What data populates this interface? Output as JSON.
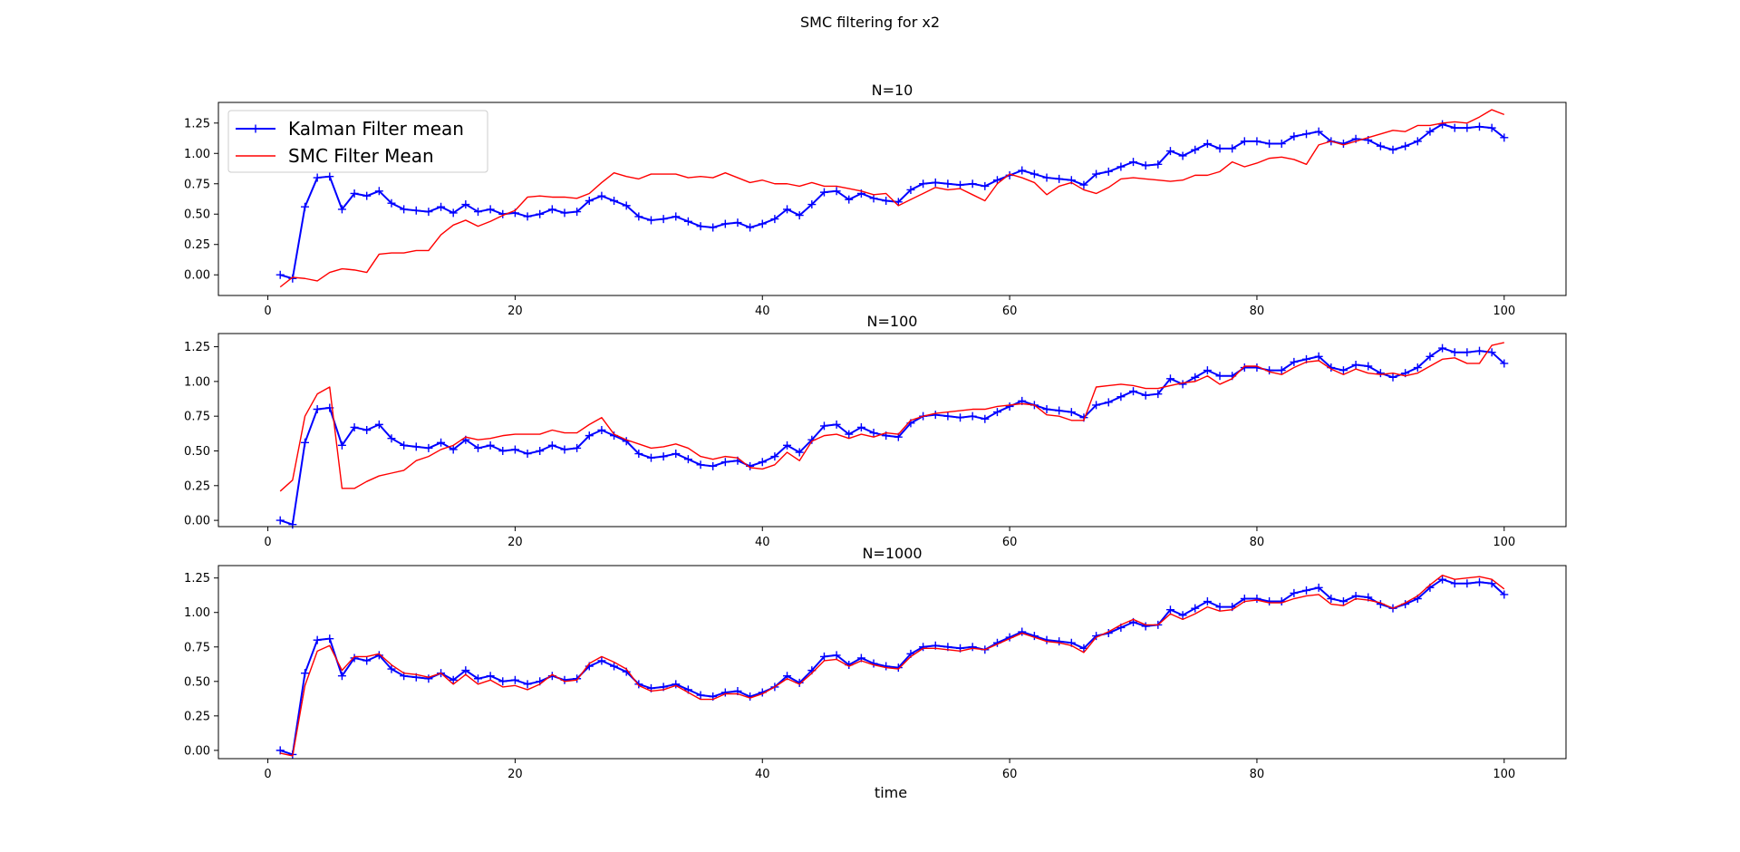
{
  "figure": {
    "suptitle": "SMC filtering for x2",
    "xlabel": "time"
  },
  "legend": {
    "location": "upper-left",
    "entries": [
      "Kalman Filter mean",
      "SMC Filter Mean"
    ]
  },
  "colors": {
    "kalman": "#0000ff",
    "smc": "#ff0000",
    "axes": "#000000"
  },
  "chart_data": [
    {
      "type": "line",
      "title": "N=10",
      "xlim": [
        -4,
        105
      ],
      "ylim": [
        -0.17,
        1.42
      ],
      "xticks": [
        0,
        20,
        40,
        60,
        80,
        100
      ],
      "yticks": [
        0.0,
        0.25,
        0.5,
        0.75,
        1.0,
        1.25
      ],
      "ytick_labels": [
        "0.00",
        "0.25",
        "0.50",
        "0.75",
        "1.00",
        "1.25"
      ],
      "x": [
        1,
        2,
        3,
        4,
        5,
        6,
        7,
        8,
        9,
        10,
        11,
        12,
        13,
        14,
        15,
        16,
        17,
        18,
        19,
        20,
        21,
        22,
        23,
        24,
        25,
        26,
        27,
        28,
        29,
        30,
        31,
        32,
        33,
        34,
        35,
        36,
        37,
        38,
        39,
        40,
        41,
        42,
        43,
        44,
        45,
        46,
        47,
        48,
        49,
        50,
        51,
        52,
        53,
        54,
        55,
        56,
        57,
        58,
        59,
        60,
        61,
        62,
        63,
        64,
        65,
        66,
        67,
        68,
        69,
        70,
        71,
        72,
        73,
        74,
        75,
        76,
        77,
        78,
        79,
        80,
        81,
        82,
        83,
        84,
        85,
        86,
        87,
        88,
        89,
        90,
        91,
        92,
        93,
        94,
        95,
        96,
        97,
        98,
        99,
        100
      ],
      "series": [
        {
          "name": "Kalman Filter mean",
          "color": "#0000ff",
          "marker": "+",
          "values": [
            0.0,
            -0.03,
            0.56,
            0.8,
            0.81,
            0.54,
            0.67,
            0.65,
            0.69,
            0.59,
            0.54,
            0.53,
            0.52,
            0.56,
            0.51,
            0.58,
            0.52,
            0.54,
            0.5,
            0.51,
            0.48,
            0.5,
            0.54,
            0.51,
            0.52,
            0.61,
            0.65,
            0.61,
            0.57,
            0.48,
            0.45,
            0.46,
            0.48,
            0.44,
            0.4,
            0.39,
            0.42,
            0.43,
            0.39,
            0.42,
            0.46,
            0.54,
            0.49,
            0.58,
            0.68,
            0.69,
            0.62,
            0.67,
            0.63,
            0.61,
            0.6,
            0.7,
            0.75,
            0.76,
            0.75,
            0.74,
            0.75,
            0.73,
            0.78,
            0.82,
            0.86,
            0.83,
            0.8,
            0.79,
            0.78,
            0.74,
            0.83,
            0.85,
            0.89,
            0.93,
            0.9,
            0.91,
            1.02,
            0.98,
            1.03,
            1.08,
            1.04,
            1.04,
            1.1,
            1.1,
            1.08,
            1.08,
            1.14,
            1.16,
            1.18,
            1.1,
            1.08,
            1.12,
            1.11,
            1.06,
            1.03,
            1.06,
            1.1,
            1.18,
            1.24,
            1.21,
            1.21,
            1.22,
            1.21,
            1.13
          ]
        },
        {
          "name": "SMC Filter Mean",
          "color": "#ff0000",
          "marker": "",
          "values": [
            -0.1,
            -0.02,
            -0.03,
            -0.05,
            0.02,
            0.05,
            0.04,
            0.02,
            0.17,
            0.18,
            0.18,
            0.2,
            0.2,
            0.33,
            0.41,
            0.45,
            0.4,
            0.44,
            0.49,
            0.53,
            0.64,
            0.65,
            0.64,
            0.64,
            0.63,
            0.67,
            0.76,
            0.84,
            0.81,
            0.79,
            0.83,
            0.83,
            0.83,
            0.8,
            0.81,
            0.8,
            0.84,
            0.8,
            0.76,
            0.78,
            0.75,
            0.75,
            0.73,
            0.76,
            0.73,
            0.73,
            0.71,
            0.69,
            0.66,
            0.67,
            0.57,
            0.62,
            0.67,
            0.72,
            0.7,
            0.71,
            0.66,
            0.61,
            0.75,
            0.83,
            0.8,
            0.76,
            0.66,
            0.73,
            0.76,
            0.7,
            0.67,
            0.72,
            0.79,
            0.8,
            0.79,
            0.78,
            0.77,
            0.78,
            0.82,
            0.82,
            0.85,
            0.93,
            0.89,
            0.92,
            0.96,
            0.97,
            0.95,
            0.91,
            1.07,
            1.1,
            1.07,
            1.1,
            1.13,
            1.16,
            1.19,
            1.18,
            1.23,
            1.23,
            1.25,
            1.26,
            1.25,
            1.3,
            1.36,
            1.32
          ]
        }
      ]
    },
    {
      "type": "line",
      "title": "N=100",
      "xlim": [
        -4,
        105
      ],
      "ylim": [
        -0.045,
        1.345
      ],
      "xticks": [
        0,
        20,
        40,
        60,
        80,
        100
      ],
      "yticks": [
        0.0,
        0.25,
        0.5,
        0.75,
        1.0,
        1.25
      ],
      "ytick_labels": [
        "0.00",
        "0.25",
        "0.50",
        "0.75",
        "1.00",
        "1.25"
      ],
      "x": [
        1,
        2,
        3,
        4,
        5,
        6,
        7,
        8,
        9,
        10,
        11,
        12,
        13,
        14,
        15,
        16,
        17,
        18,
        19,
        20,
        21,
        22,
        23,
        24,
        25,
        26,
        27,
        28,
        29,
        30,
        31,
        32,
        33,
        34,
        35,
        36,
        37,
        38,
        39,
        40,
        41,
        42,
        43,
        44,
        45,
        46,
        47,
        48,
        49,
        50,
        51,
        52,
        53,
        54,
        55,
        56,
        57,
        58,
        59,
        60,
        61,
        62,
        63,
        64,
        65,
        66,
        67,
        68,
        69,
        70,
        71,
        72,
        73,
        74,
        75,
        76,
        77,
        78,
        79,
        80,
        81,
        82,
        83,
        84,
        85,
        86,
        87,
        88,
        89,
        90,
        91,
        92,
        93,
        94,
        95,
        96,
        97,
        98,
        99,
        100
      ],
      "series": [
        {
          "name": "Kalman Filter mean",
          "color": "#0000ff",
          "marker": "+",
          "values": [
            0.0,
            -0.03,
            0.56,
            0.8,
            0.81,
            0.54,
            0.67,
            0.65,
            0.69,
            0.59,
            0.54,
            0.53,
            0.52,
            0.56,
            0.51,
            0.58,
            0.52,
            0.54,
            0.5,
            0.51,
            0.48,
            0.5,
            0.54,
            0.51,
            0.52,
            0.61,
            0.65,
            0.61,
            0.57,
            0.48,
            0.45,
            0.46,
            0.48,
            0.44,
            0.4,
            0.39,
            0.42,
            0.43,
            0.39,
            0.42,
            0.46,
            0.54,
            0.49,
            0.58,
            0.68,
            0.69,
            0.62,
            0.67,
            0.63,
            0.61,
            0.6,
            0.7,
            0.75,
            0.76,
            0.75,
            0.74,
            0.75,
            0.73,
            0.78,
            0.82,
            0.86,
            0.83,
            0.8,
            0.79,
            0.78,
            0.74,
            0.83,
            0.85,
            0.89,
            0.93,
            0.9,
            0.91,
            1.02,
            0.98,
            1.03,
            1.08,
            1.04,
            1.04,
            1.1,
            1.1,
            1.08,
            1.08,
            1.14,
            1.16,
            1.18,
            1.1,
            1.08,
            1.12,
            1.11,
            1.06,
            1.03,
            1.06,
            1.1,
            1.18,
            1.24,
            1.21,
            1.21,
            1.22,
            1.21,
            1.13
          ]
        },
        {
          "name": "SMC Filter Mean",
          "color": "#ff0000",
          "marker": "",
          "values": [
            0.21,
            0.29,
            0.75,
            0.91,
            0.96,
            0.23,
            0.23,
            0.28,
            0.32,
            0.34,
            0.36,
            0.43,
            0.46,
            0.51,
            0.54,
            0.6,
            0.58,
            0.59,
            0.61,
            0.62,
            0.62,
            0.62,
            0.65,
            0.63,
            0.63,
            0.69,
            0.74,
            0.62,
            0.58,
            0.55,
            0.52,
            0.53,
            0.55,
            0.52,
            0.46,
            0.44,
            0.46,
            0.45,
            0.38,
            0.37,
            0.4,
            0.49,
            0.43,
            0.57,
            0.61,
            0.62,
            0.59,
            0.62,
            0.6,
            0.63,
            0.62,
            0.72,
            0.75,
            0.77,
            0.78,
            0.79,
            0.8,
            0.8,
            0.82,
            0.83,
            0.84,
            0.83,
            0.76,
            0.75,
            0.72,
            0.72,
            0.96,
            0.97,
            0.98,
            0.97,
            0.95,
            0.95,
            0.97,
            0.99,
            1.0,
            1.04,
            0.98,
            1.02,
            1.11,
            1.11,
            1.07,
            1.05,
            1.1,
            1.14,
            1.15,
            1.09,
            1.05,
            1.09,
            1.06,
            1.05,
            1.06,
            1.04,
            1.06,
            1.11,
            1.16,
            1.17,
            1.13,
            1.13,
            1.26,
            1.28
          ]
        }
      ]
    },
    {
      "type": "line",
      "title": "N=1000",
      "xlim": [
        -4,
        105
      ],
      "ylim": [
        -0.06,
        1.34
      ],
      "xticks": [
        0,
        20,
        40,
        60,
        80,
        100
      ],
      "yticks": [
        0.0,
        0.25,
        0.5,
        0.75,
        1.0,
        1.25
      ],
      "ytick_labels": [
        "0.00",
        "0.25",
        "0.50",
        "0.75",
        "1.00",
        "1.25"
      ],
      "x": [
        1,
        2,
        3,
        4,
        5,
        6,
        7,
        8,
        9,
        10,
        11,
        12,
        13,
        14,
        15,
        16,
        17,
        18,
        19,
        20,
        21,
        22,
        23,
        24,
        25,
        26,
        27,
        28,
        29,
        30,
        31,
        32,
        33,
        34,
        35,
        36,
        37,
        38,
        39,
        40,
        41,
        42,
        43,
        44,
        45,
        46,
        47,
        48,
        49,
        50,
        51,
        52,
        53,
        54,
        55,
        56,
        57,
        58,
        59,
        60,
        61,
        62,
        63,
        64,
        65,
        66,
        67,
        68,
        69,
        70,
        71,
        72,
        73,
        74,
        75,
        76,
        77,
        78,
        79,
        80,
        81,
        82,
        83,
        84,
        85,
        86,
        87,
        88,
        89,
        90,
        91,
        92,
        93,
        94,
        95,
        96,
        97,
        98,
        99,
        100
      ],
      "series": [
        {
          "name": "Kalman Filter mean",
          "color": "#0000ff",
          "marker": "+",
          "values": [
            0.0,
            -0.03,
            0.56,
            0.8,
            0.81,
            0.54,
            0.67,
            0.65,
            0.69,
            0.59,
            0.54,
            0.53,
            0.52,
            0.56,
            0.51,
            0.58,
            0.52,
            0.54,
            0.5,
            0.51,
            0.48,
            0.5,
            0.54,
            0.51,
            0.52,
            0.61,
            0.65,
            0.61,
            0.57,
            0.48,
            0.45,
            0.46,
            0.48,
            0.44,
            0.4,
            0.39,
            0.42,
            0.43,
            0.39,
            0.42,
            0.46,
            0.54,
            0.49,
            0.58,
            0.68,
            0.69,
            0.62,
            0.67,
            0.63,
            0.61,
            0.6,
            0.7,
            0.75,
            0.76,
            0.75,
            0.74,
            0.75,
            0.73,
            0.78,
            0.82,
            0.86,
            0.83,
            0.8,
            0.79,
            0.78,
            0.74,
            0.83,
            0.85,
            0.89,
            0.93,
            0.9,
            0.91,
            1.02,
            0.98,
            1.03,
            1.08,
            1.04,
            1.04,
            1.1,
            1.1,
            1.08,
            1.08,
            1.14,
            1.16,
            1.18,
            1.1,
            1.08,
            1.12,
            1.11,
            1.06,
            1.03,
            1.06,
            1.1,
            1.18,
            1.24,
            1.21,
            1.21,
            1.22,
            1.21,
            1.13
          ]
        },
        {
          "name": "SMC Filter Mean",
          "color": "#ff0000",
          "marker": "",
          "values": [
            -0.02,
            -0.04,
            0.47,
            0.72,
            0.76,
            0.58,
            0.68,
            0.68,
            0.7,
            0.62,
            0.56,
            0.55,
            0.53,
            0.56,
            0.48,
            0.55,
            0.48,
            0.51,
            0.46,
            0.47,
            0.44,
            0.48,
            0.55,
            0.5,
            0.51,
            0.63,
            0.68,
            0.64,
            0.59,
            0.47,
            0.43,
            0.44,
            0.47,
            0.42,
            0.37,
            0.37,
            0.41,
            0.41,
            0.38,
            0.41,
            0.46,
            0.52,
            0.48,
            0.56,
            0.65,
            0.66,
            0.61,
            0.65,
            0.62,
            0.6,
            0.59,
            0.68,
            0.74,
            0.74,
            0.73,
            0.72,
            0.74,
            0.73,
            0.77,
            0.81,
            0.85,
            0.82,
            0.79,
            0.78,
            0.76,
            0.71,
            0.82,
            0.86,
            0.91,
            0.95,
            0.91,
            0.91,
            0.99,
            0.95,
            0.99,
            1.04,
            1.01,
            1.02,
            1.08,
            1.09,
            1.07,
            1.07,
            1.1,
            1.12,
            1.13,
            1.06,
            1.05,
            1.1,
            1.09,
            1.07,
            1.03,
            1.07,
            1.12,
            1.2,
            1.27,
            1.24,
            1.25,
            1.26,
            1.24,
            1.17
          ]
        }
      ]
    }
  ]
}
